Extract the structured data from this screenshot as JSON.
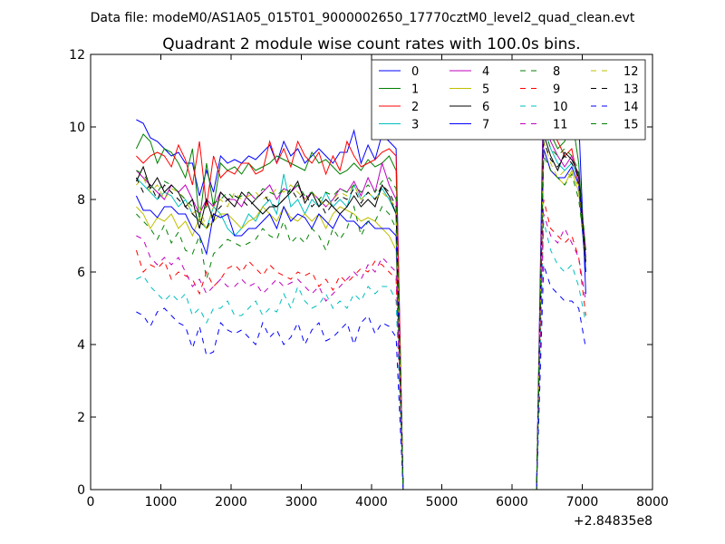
{
  "figure": {
    "suptitle": "Data file: modeM0/AS1A05_015T01_9000002650_17770cztM0_level2_quad_clean.evt"
  },
  "chart_data": {
    "type": "line",
    "title": "Quadrant 2 module wise count rates with 100.0s bins.",
    "xlabel": "",
    "ylabel": "",
    "x_offset_label": "+2.84835e8",
    "xlim": [
      0,
      8000
    ],
    "ylim": [
      0,
      12
    ],
    "xticks": [
      "0",
      "1000",
      "2000",
      "3000",
      "4000",
      "5000",
      "6000",
      "7000",
      "8000"
    ],
    "yticks": [
      "0",
      "2",
      "4",
      "6",
      "8",
      "10",
      "12"
    ],
    "grid": false,
    "legend_position": "top-right",
    "legend_columns": 4,
    "x": [
      650,
      750,
      850,
      950,
      1050,
      1150,
      1250,
      1350,
      1450,
      1550,
      1650,
      1750,
      1850,
      1950,
      2050,
      2150,
      2250,
      2350,
      2450,
      2550,
      2650,
      2750,
      2850,
      2950,
      3050,
      3150,
      3250,
      3350,
      3450,
      3550,
      3650,
      3750,
      3850,
      3950,
      4050,
      4150,
      4250,
      4350,
      4450,
      4550,
      4650,
      4750,
      4850,
      4950,
      5050,
      5150,
      5250,
      5350,
      5450,
      5550,
      5650,
      5750,
      5850,
      5950,
      6050,
      6150,
      6250,
      6350,
      6450,
      6550,
      6650,
      6750,
      6850,
      6950,
      7050
    ],
    "series": [
      {
        "name": "0",
        "color": "#0000ff",
        "dash": "solid",
        "values": [
          10.2,
          10.1,
          9.7,
          9.6,
          9.4,
          9.2,
          9.3,
          9.0,
          9.0,
          8.1,
          8.8,
          8.2,
          9.2,
          9.0,
          9.1,
          9.0,
          9.2,
          9.1,
          9.3,
          9.5,
          9.0,
          9.6,
          9.2,
          9.4,
          9.0,
          9.2,
          9.4,
          9.2,
          9.0,
          9.3,
          9.3,
          9.9,
          9.0,
          9.5,
          9.1,
          9.8,
          9.6,
          9.4,
          0,
          0,
          0,
          0,
          0,
          0,
          0,
          0,
          0,
          0,
          0,
          0,
          0,
          0,
          0,
          0,
          0,
          0,
          0,
          0,
          11.4,
          11.0,
          10.8,
          10.6,
          11.0,
          10.2,
          5.4
        ]
      },
      {
        "name": "1",
        "color": "#008000",
        "dash": "solid",
        "values": [
          9.4,
          9.8,
          9.6,
          9.0,
          9.4,
          9.3,
          9.0,
          8.6,
          9.4,
          7.4,
          9.0,
          7.8,
          9.0,
          8.8,
          8.9,
          8.7,
          9.0,
          8.8,
          8.9,
          9.0,
          9.2,
          9.1,
          9.0,
          8.9,
          8.8,
          9.3,
          9.0,
          9.1,
          8.9,
          8.7,
          8.8,
          9.0,
          8.8,
          9.1,
          8.9,
          9.0,
          9.2,
          8.8,
          0,
          0,
          0,
          0,
          0,
          0,
          0,
          0,
          0,
          0,
          0,
          0,
          0,
          0,
          0,
          0,
          0,
          0,
          0,
          0,
          10.4,
          9.8,
          9.4,
          9.6,
          10.3,
          9.0,
          6.0
        ]
      },
      {
        "name": "2",
        "color": "#ff0000",
        "dash": "solid",
        "values": [
          9.2,
          9.0,
          9.2,
          9.3,
          9.2,
          8.9,
          9.5,
          9.1,
          8.4,
          9.6,
          7.8,
          9.2,
          8.6,
          8.8,
          8.7,
          9.0,
          9.0,
          8.7,
          8.8,
          9.6,
          9.0,
          9.4,
          8.9,
          9.6,
          9.2,
          9.0,
          9.3,
          8.7,
          9.2,
          8.8,
          9.6,
          9.2,
          8.9,
          9.0,
          9.1,
          9.3,
          9.4,
          9.2,
          0,
          0,
          0,
          0,
          0,
          0,
          0,
          0,
          0,
          0,
          0,
          0,
          0,
          0,
          0,
          0,
          0,
          0,
          0,
          0,
          10.6,
          10.0,
          9.6,
          9.2,
          9.4,
          8.4,
          6.4
        ]
      },
      {
        "name": "3",
        "color": "#00bfbf",
        "dash": "solid",
        "values": [
          8.6,
          8.4,
          8.2,
          8.0,
          8.2,
          8.1,
          7.8,
          8.0,
          7.6,
          7.4,
          7.2,
          7.8,
          7.6,
          7.2,
          7.0,
          7.2,
          7.6,
          7.4,
          7.8,
          8.0,
          7.6,
          8.7,
          7.8,
          8.0,
          7.6,
          8.0,
          7.8,
          8.2,
          7.8,
          8.0,
          7.8,
          8.4,
          8.0,
          8.2,
          8.0,
          8.3,
          8.0,
          7.6,
          0,
          0,
          0,
          0,
          0,
          0,
          0,
          0,
          0,
          0,
          0,
          0,
          0,
          0,
          0,
          0,
          0,
          0,
          0,
          0,
          10.0,
          9.4,
          9.0,
          8.8,
          9.0,
          8.6,
          6.0
        ]
      },
      {
        "name": "4",
        "color": "#bf00bf",
        "dash": "solid",
        "values": [
          8.8,
          8.6,
          8.4,
          8.2,
          8.0,
          8.4,
          8.2,
          8.4,
          8.0,
          7.6,
          8.0,
          7.8,
          8.2,
          8.0,
          8.0,
          7.8,
          8.2,
          8.0,
          8.2,
          8.4,
          8.0,
          8.3,
          8.2,
          8.4,
          8.0,
          8.2,
          8.0,
          7.8,
          8.0,
          8.3,
          8.2,
          8.5,
          8.1,
          8.6,
          8.2,
          9.0,
          8.4,
          8.0,
          0,
          0,
          0,
          0,
          0,
          0,
          0,
          0,
          0,
          0,
          0,
          0,
          0,
          0,
          0,
          0,
          0,
          0,
          0,
          0,
          10.3,
          9.6,
          9.2,
          8.9,
          9.2,
          8.6,
          6.6
        ]
      },
      {
        "name": "5",
        "color": "#bfbf00",
        "dash": "solid",
        "values": [
          7.8,
          7.6,
          7.2,
          7.5,
          7.4,
          7.6,
          7.2,
          7.4,
          7.0,
          7.5,
          7.2,
          7.4,
          7.6,
          7.6,
          7.4,
          7.2,
          7.4,
          7.5,
          7.8,
          7.6,
          7.4,
          7.8,
          7.5,
          7.4,
          7.6,
          7.4,
          7.6,
          7.2,
          7.6,
          7.8,
          7.7,
          7.6,
          7.4,
          7.5,
          7.4,
          7.2,
          7.0,
          6.6,
          0,
          0,
          0,
          0,
          0,
          0,
          0,
          0,
          0,
          0,
          0,
          0,
          0,
          0,
          0,
          0,
          0,
          0,
          0,
          0,
          9.4,
          8.8,
          8.6,
          8.4,
          8.8,
          8.2,
          6.2
        ]
      },
      {
        "name": "6",
        "color": "#000000",
        "dash": "solid",
        "values": [
          8.5,
          8.9,
          8.3,
          8.6,
          8.2,
          8.4,
          8.2,
          7.8,
          8.0,
          7.2,
          8.0,
          7.4,
          8.2,
          8.0,
          7.8,
          8.2,
          8.0,
          7.8,
          7.6,
          7.8,
          7.8,
          8.0,
          8.2,
          8.5,
          7.9,
          8.2,
          7.8,
          8.0,
          7.8,
          7.6,
          7.8,
          8.1,
          7.8,
          8.0,
          7.8,
          8.4,
          8.1,
          7.6,
          0,
          0,
          0,
          0,
          0,
          0,
          0,
          0,
          0,
          0,
          0,
          0,
          0,
          0,
          0,
          0,
          0,
          0,
          0,
          0,
          9.8,
          9.2,
          8.8,
          9.3,
          9.1,
          8.7,
          6.3
        ]
      },
      {
        "name": "7",
        "color": "#0000ff",
        "dash": "solid",
        "values": [
          8.1,
          7.7,
          7.7,
          7.5,
          7.8,
          7.8,
          7.6,
          7.6,
          7.2,
          7.0,
          6.5,
          7.6,
          7.5,
          7.6,
          7.0,
          7.0,
          7.2,
          7.2,
          7.4,
          7.6,
          7.2,
          7.8,
          7.4,
          7.6,
          7.5,
          7.2,
          7.6,
          7.4,
          7.2,
          7.6,
          7.4,
          7.4,
          7.2,
          7.4,
          7.2,
          7.2,
          7.2,
          7.0,
          0,
          0,
          0,
          0,
          0,
          0,
          0,
          0,
          0,
          0,
          0,
          0,
          0,
          0,
          0,
          0,
          0,
          0,
          0,
          0,
          9.4,
          8.8,
          8.6,
          8.6,
          8.9,
          8.4,
          6.0
        ]
      },
      {
        "name": "8",
        "color": "#008000",
        "dash": "dashed",
        "values": [
          7.6,
          7.4,
          7.2,
          6.9,
          7.3,
          6.8,
          7.1,
          6.6,
          6.5,
          7.0,
          5.8,
          6.5,
          6.7,
          6.9,
          6.8,
          6.7,
          6.8,
          6.9,
          7.2,
          7.0,
          6.9,
          7.4,
          6.8,
          7.0,
          6.8,
          7.2,
          7.0,
          6.6,
          7.2,
          6.9,
          7.2,
          7.8,
          7.0,
          7.4,
          7.4,
          7.8,
          7.6,
          7.2,
          0,
          0,
          0,
          0,
          0,
          0,
          0,
          0,
          0,
          0,
          0,
          0,
          0,
          0,
          0,
          0,
          0,
          0,
          0,
          0,
          9.2,
          8.8,
          8.6,
          8.4,
          8.7,
          8.0,
          6.4
        ]
      },
      {
        "name": "9",
        "color": "#ff0000",
        "dash": "dashed",
        "values": [
          6.6,
          6.0,
          6.2,
          6.1,
          6.3,
          5.8,
          6.0,
          5.9,
          5.8,
          5.4,
          6.0,
          5.6,
          5.8,
          6.1,
          6.2,
          6.0,
          6.3,
          6.1,
          5.9,
          6.2,
          6.0,
          5.9,
          5.8,
          6.0,
          5.9,
          6.0,
          5.6,
          5.8,
          5.5,
          5.9,
          5.7,
          5.9,
          6.1,
          6.0,
          6.3,
          6.2,
          6.0,
          5.8,
          0,
          0,
          0,
          0,
          0,
          0,
          0,
          0,
          0,
          0,
          0,
          0,
          0,
          0,
          0,
          0,
          0,
          0,
          0,
          0,
          8.0,
          7.2,
          7.0,
          6.8,
          7.0,
          6.4,
          4.8
        ]
      },
      {
        "name": "10",
        "color": "#00bfbf",
        "dash": "dashed",
        "values": [
          5.8,
          5.9,
          5.6,
          5.4,
          5.2,
          5.4,
          5.2,
          5.4,
          4.8,
          5.0,
          4.6,
          5.0,
          5.0,
          5.2,
          4.8,
          4.8,
          5.0,
          5.2,
          4.8,
          5.0,
          4.9,
          5.4,
          5.0,
          5.6,
          5.2,
          5.0,
          5.1,
          5.4,
          5.0,
          5.2,
          5.0,
          5.4,
          5.2,
          5.6,
          5.4,
          5.6,
          5.6,
          5.2,
          0,
          0,
          0,
          0,
          0,
          0,
          0,
          0,
          0,
          0,
          0,
          0,
          0,
          0,
          0,
          0,
          0,
          0,
          0,
          0,
          7.4,
          6.6,
          6.2,
          6.0,
          6.2,
          5.6,
          4.6
        ]
      },
      {
        "name": "11",
        "color": "#bf00bf",
        "dash": "dashed",
        "values": [
          7.0,
          6.9,
          6.4,
          6.2,
          6.4,
          6.2,
          6.4,
          6.0,
          5.6,
          5.8,
          5.4,
          5.6,
          5.8,
          5.6,
          5.6,
          5.8,
          5.6,
          5.7,
          5.4,
          5.6,
          5.8,
          5.6,
          5.7,
          5.8,
          5.6,
          5.4,
          5.6,
          5.2,
          5.4,
          5.6,
          5.8,
          6.0,
          5.8,
          6.2,
          6.0,
          6.4,
          6.2,
          6.0,
          0,
          0,
          0,
          0,
          0,
          0,
          0,
          0,
          0,
          0,
          0,
          0,
          0,
          0,
          0,
          0,
          0,
          0,
          0,
          0,
          7.6,
          7.0,
          6.8,
          7.2,
          6.8,
          6.4,
          5.2
        ]
      },
      {
        "name": "12",
        "color": "#bfbf00",
        "dash": "dashed",
        "values": [
          8.4,
          8.6,
          8.2,
          8.4,
          8.0,
          8.3,
          8.2,
          8.0,
          7.6,
          7.8,
          7.2,
          7.8,
          8.0,
          7.8,
          8.2,
          8.0,
          8.1,
          8.2,
          8.0,
          8.1,
          8.3,
          8.2,
          8.4,
          8.2,
          8.0,
          8.2,
          8.0,
          7.8,
          8.0,
          8.2,
          8.1,
          8.4,
          8.0,
          8.2,
          8.0,
          8.2,
          8.0,
          7.8,
          0,
          0,
          0,
          0,
          0,
          0,
          0,
          0,
          0,
          0,
          0,
          0,
          0,
          0,
          0,
          0,
          0,
          0,
          0,
          0,
          9.6,
          9.0,
          8.6,
          8.8,
          8.6,
          8.4,
          6.2
        ]
      },
      {
        "name": "13",
        "color": "#000000",
        "dash": "dashed",
        "values": [
          8.6,
          8.2,
          8.4,
          8.0,
          8.4,
          8.2,
          8.0,
          7.8,
          7.6,
          7.4,
          7.2,
          7.6,
          7.8,
          8.0,
          8.1,
          8.0,
          7.8,
          8.0,
          8.2,
          7.9,
          7.8,
          8.0,
          8.3,
          8.0,
          8.2,
          7.8,
          8.0,
          7.6,
          7.9,
          8.1,
          8.0,
          8.3,
          7.9,
          8.2,
          8.0,
          8.4,
          8.2,
          7.8,
          0,
          0,
          0,
          0,
          0,
          0,
          0,
          0,
          0,
          0,
          0,
          0,
          0,
          0,
          0,
          0,
          0,
          0,
          0,
          0,
          9.6,
          9.1,
          8.9,
          9.2,
          9.0,
          8.6,
          6.2
        ]
      },
      {
        "name": "14",
        "color": "#0000ff",
        "dash": "dashed",
        "values": [
          4.9,
          4.8,
          4.5,
          4.9,
          5.0,
          4.8,
          4.6,
          4.5,
          3.9,
          4.5,
          3.7,
          3.8,
          4.6,
          4.4,
          4.3,
          4.4,
          4.2,
          4.0,
          4.6,
          4.2,
          4.4,
          4.0,
          4.2,
          4.6,
          4.0,
          4.4,
          4.6,
          4.1,
          4.2,
          4.4,
          4.6,
          4.0,
          4.6,
          4.8,
          4.3,
          4.6,
          4.5,
          4.2,
          0,
          0,
          0,
          0,
          0,
          0,
          0,
          0,
          0,
          0,
          0,
          0,
          0,
          0,
          0,
          0,
          0,
          0,
          0,
          0,
          6.2,
          5.6,
          5.4,
          5.2,
          5.2,
          5.0,
          3.9
        ]
      },
      {
        "name": "15",
        "color": "#008000",
        "dash": "dashed",
        "values": [
          8.8,
          8.7,
          8.4,
          8.2,
          8.5,
          8.4,
          8.2,
          8.0,
          7.8,
          7.6,
          7.8,
          7.9,
          8.0,
          8.2,
          8.0,
          8.1,
          8.2,
          8.0,
          8.3,
          8.2,
          8.1,
          8.3,
          8.2,
          8.4,
          8.1,
          8.2,
          8.0,
          8.2,
          8.1,
          8.3,
          8.2,
          8.4,
          8.2,
          8.4,
          8.2,
          8.5,
          8.6,
          8.3,
          0,
          0,
          0,
          0,
          0,
          0,
          0,
          0,
          0,
          0,
          0,
          0,
          0,
          0,
          0,
          0,
          0,
          0,
          0,
          0,
          10.0,
          9.4,
          9.2,
          9.4,
          9.2,
          8.8,
          6.6
        ]
      }
    ]
  }
}
